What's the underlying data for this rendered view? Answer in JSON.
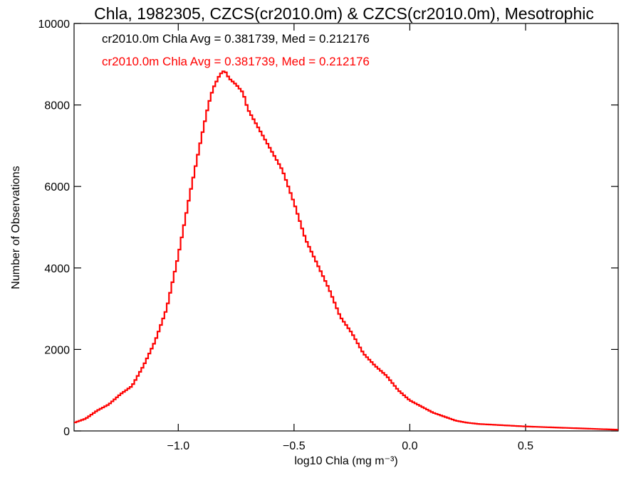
{
  "chart_data": {
    "type": "line",
    "step": true,
    "title": "Chla, 1982305, CZCS(cr2010.0m) & CZCS(cr2010.0m), Mesotrophic",
    "xlabel": "log10 Chla (mg m⁻³)",
    "ylabel": "Number of Observations",
    "xlim": [
      -1.45,
      0.9
    ],
    "ylim": [
      0,
      10000
    ],
    "xticks": [
      -1.0,
      -0.5,
      0.0,
      0.5
    ],
    "xtick_labels": [
      "−1.0",
      "−0.5",
      "0.0",
      "0.5"
    ],
    "yticks": [
      0,
      2000,
      4000,
      6000,
      8000,
      10000
    ],
    "ytick_labels": [
      "0",
      "2000",
      "4000",
      "6000",
      "8000",
      "10000"
    ],
    "annotations": [
      {
        "text": "cr2010.0m Chla Avg = 0.381739, Med = 0.212176",
        "color": "#000000"
      },
      {
        "text": "cr2010.0m Chla Avg = 0.381739, Med = 0.212176",
        "color": "#ff0000"
      }
    ],
    "series": [
      {
        "color": "#ff0000",
        "x": [
          -1.45,
          -1.4,
          -1.35,
          -1.3,
          -1.25,
          -1.2,
          -1.15,
          -1.1,
          -1.05,
          -1.0,
          -0.95,
          -0.9,
          -0.87,
          -0.85,
          -0.82,
          -0.8,
          -0.78,
          -0.75,
          -0.72,
          -0.7,
          -0.65,
          -0.6,
          -0.55,
          -0.5,
          -0.45,
          -0.4,
          -0.35,
          -0.3,
          -0.25,
          -0.2,
          -0.15,
          -0.1,
          -0.05,
          0.0,
          0.05,
          0.1,
          0.15,
          0.2,
          0.25,
          0.3,
          0.4,
          0.5,
          0.6,
          0.7,
          0.8,
          0.9
        ],
        "y": [
          200,
          300,
          500,
          650,
          900,
          1100,
          1600,
          2200,
          3000,
          4300,
          5800,
          7200,
          8000,
          8400,
          8750,
          8850,
          8650,
          8500,
          8300,
          7900,
          7400,
          6900,
          6400,
          5600,
          4700,
          4100,
          3500,
          2800,
          2400,
          1900,
          1600,
          1350,
          1000,
          750,
          600,
          450,
          350,
          250,
          200,
          170,
          140,
          110,
          90,
          70,
          50,
          30
        ]
      }
    ]
  }
}
